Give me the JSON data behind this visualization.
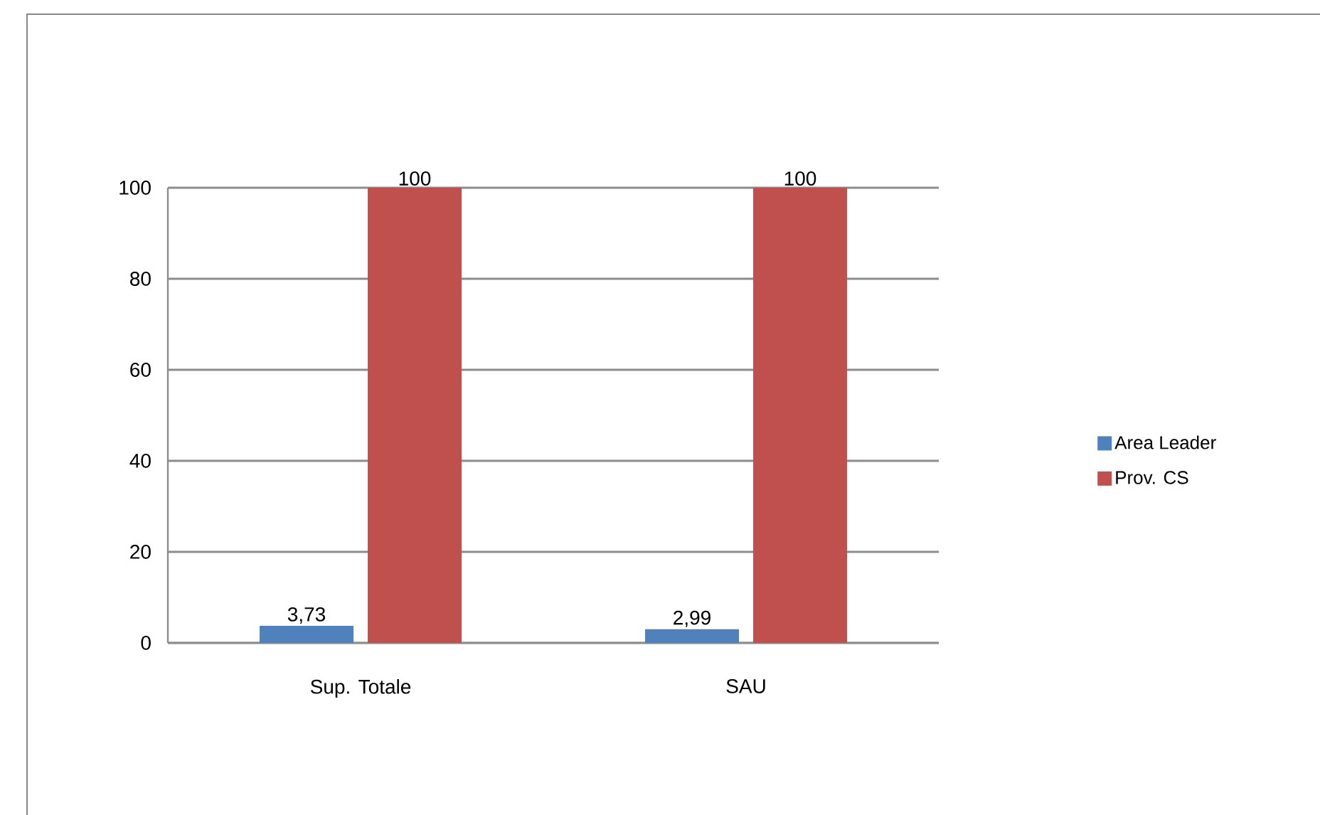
{
  "chart_data": {
    "type": "bar",
    "categories": [
      "Sup. Totale",
      "SAU"
    ],
    "series": [
      {
        "name": "Area Leader",
        "color": "#4f81bd",
        "values": [
          3.73,
          2.99
        ],
        "value_labels": [
          "3,73",
          "2,99"
        ]
      },
      {
        "name": "Prov. CS",
        "color": "#c0504d",
        "values": [
          100,
          100
        ],
        "value_labels": [
          "100",
          "100"
        ]
      }
    ],
    "ylim": [
      0,
      100
    ],
    "yticks": [
      0,
      20,
      40,
      60,
      80,
      100
    ],
    "grid": "y",
    "legend": "right"
  }
}
